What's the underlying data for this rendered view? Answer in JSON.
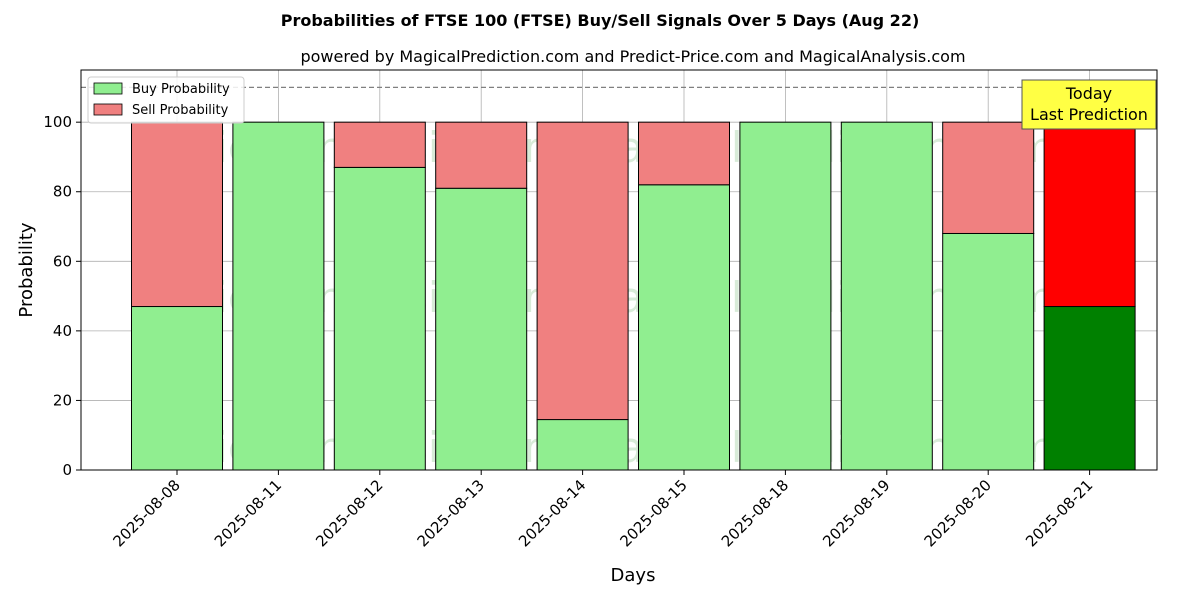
{
  "chart_data": {
    "type": "bar",
    "stacked": true,
    "title": "Probabilities of FTSE 100 (FTSE) Buy/Sell Signals Over 5 Days (Aug 22)",
    "subtitle": "powered by MagicalPrediction.com and Predict-Price.com and MagicalAnalysis.com",
    "xlabel": "Days",
    "ylabel": "Probability",
    "ylim": [
      0,
      115
    ],
    "yticks": [
      0,
      20,
      40,
      60,
      80,
      100
    ],
    "grid": true,
    "legend_placement": "top-left",
    "categories": [
      "2025-08-08",
      "2025-08-11",
      "2025-08-12",
      "2025-08-13",
      "2025-08-14",
      "2025-08-15",
      "2025-08-18",
      "2025-08-19",
      "2025-08-20",
      "2025-08-21"
    ],
    "series": [
      {
        "name": "Buy Probability",
        "values": [
          47,
          100,
          87,
          81,
          14.5,
          82,
          100,
          100,
          68,
          47
        ]
      },
      {
        "name": "Sell Probability",
        "values": [
          53,
          0,
          13,
          19,
          85.5,
          18,
          0,
          0,
          32,
          53
        ]
      }
    ],
    "reference_line": 110,
    "highlight_last": true,
    "annotation": {
      "line1": "Today",
      "line2": "Last Prediction"
    },
    "watermarks": [
      "MagicalAnalysis.com",
      "MagicalPrediction.com"
    ],
    "colors": {
      "buy": "#90ee90",
      "sell": "#f08080",
      "buy_today": "#008000",
      "sell_today": "#ff0000",
      "annotation_bg": "#ffff44",
      "grid": "#b0b0b0"
    }
  }
}
